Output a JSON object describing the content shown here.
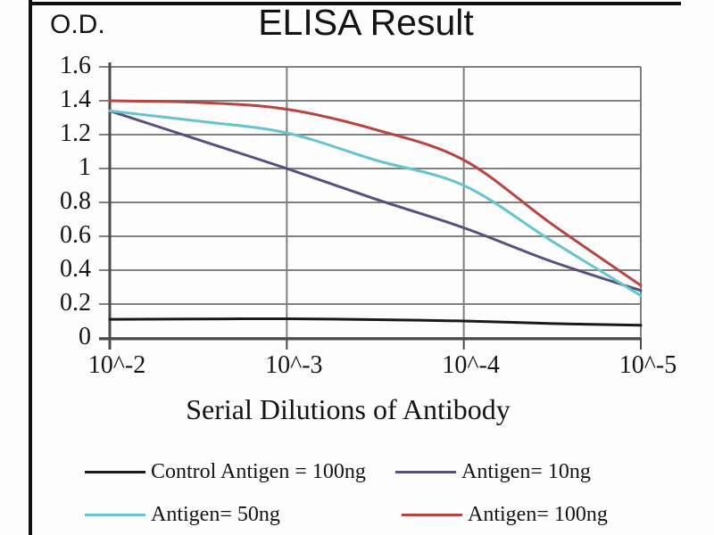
{
  "title": "ELISA Result",
  "y_axis_label": "O.D.",
  "x_axis_label": "Serial Dilutions  of Antibody",
  "chart_data": {
    "type": "line",
    "title": "ELISA Result",
    "ylabel": "O.D.",
    "xlabel": "Serial Dilutions  of Antibody",
    "x_tick_labels": [
      "10^-2",
      "10^-3",
      "10^-4",
      "10^-5"
    ],
    "y_ticks": [
      0,
      0.2,
      0.4,
      0.6,
      0.8,
      1.0,
      1.2,
      1.4,
      1.6
    ],
    "y_tick_labels": [
      "1.6",
      "1.4",
      "1.2",
      "1",
      "0.8",
      "0.6",
      "0.4",
      "0.2",
      "0"
    ],
    "ylim": [
      0,
      1.6
    ],
    "grid": true,
    "legend_position": "bottom",
    "colors": {
      "grid": "#7f7f7f",
      "axis": "#4a4a4a"
    },
    "sample_positions_in_decades": [
      0,
      0.5,
      1,
      1.5,
      2,
      2.5,
      3
    ],
    "series": [
      {
        "name": "Control Antigen = 100ng",
        "color": "#1a1a1a",
        "values": [
          0.11,
          0.112,
          0.113,
          0.108,
          0.1,
          0.085,
          0.075
        ]
      },
      {
        "name": "Antigen= 10ng",
        "color": "#57507c",
        "values": [
          1.34,
          1.17,
          1.0,
          0.82,
          0.65,
          0.45,
          0.28
        ]
      },
      {
        "name": "Antigen= 50ng",
        "color": "#66c4ce",
        "values": [
          1.34,
          1.28,
          1.21,
          1.05,
          0.9,
          0.57,
          0.25
        ]
      },
      {
        "name": "Antigen= 100ng",
        "color": "#b8433f",
        "values": [
          1.4,
          1.39,
          1.35,
          1.23,
          1.05,
          0.67,
          0.31
        ]
      }
    ]
  }
}
